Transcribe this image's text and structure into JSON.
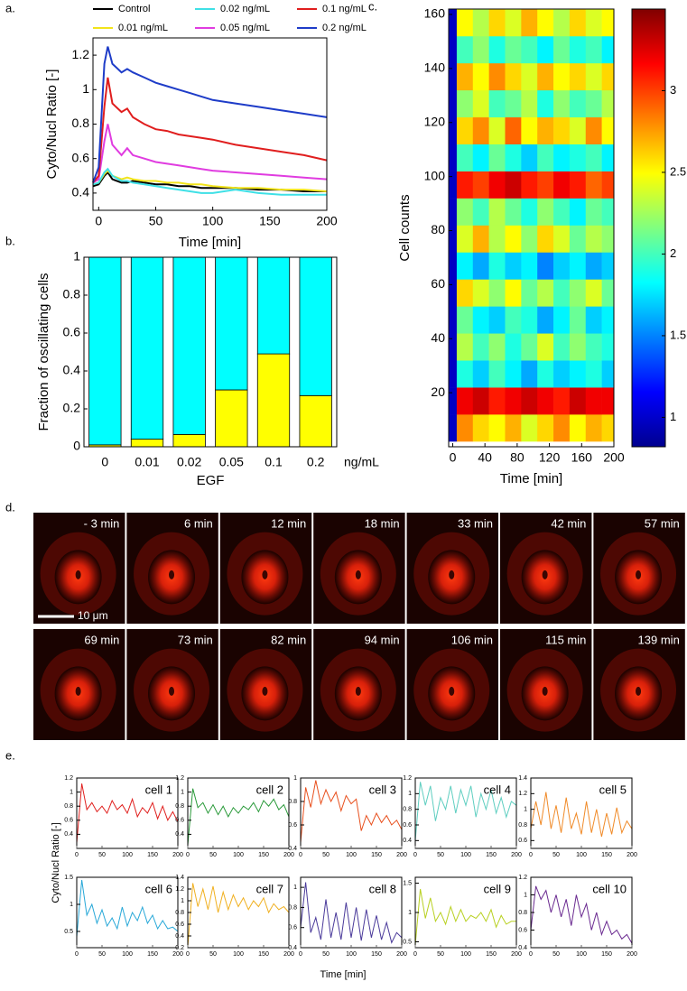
{
  "panel_labels": [
    "a.",
    "b.",
    "c.",
    "d.",
    "e."
  ],
  "chart_data": [
    {
      "type": "line",
      "xlabel": "Time [min]",
      "ylabel": "Cyto/Nucl Ratio [-]",
      "xlim": [
        -5,
        200
      ],
      "ylim": [
        0.3,
        1.3
      ],
      "xticks": [
        0,
        50,
        100,
        150,
        200
      ],
      "yticks": [
        0.4,
        0.6,
        0.8,
        1,
        1.2
      ],
      "x": [
        -5,
        0,
        5,
        8,
        12,
        20,
        25,
        30,
        40,
        50,
        60,
        70,
        80,
        90,
        100,
        120,
        140,
        160,
        180,
        200
      ],
      "series": [
        {
          "name": "Control",
          "color": "#000000",
          "values": [
            0.44,
            0.45,
            0.5,
            0.52,
            0.48,
            0.46,
            0.46,
            0.47,
            0.46,
            0.45,
            0.45,
            0.44,
            0.44,
            0.43,
            0.43,
            0.43,
            0.42,
            0.42,
            0.41,
            0.41
          ]
        },
        {
          "name": "0.01 ng/mL",
          "color": "#f2e41a",
          "values": [
            0.45,
            0.46,
            0.51,
            0.53,
            0.5,
            0.48,
            0.49,
            0.48,
            0.47,
            0.47,
            0.46,
            0.46,
            0.45,
            0.45,
            0.44,
            0.43,
            0.43,
            0.42,
            0.42,
            0.41
          ]
        },
        {
          "name": "0.02 ng/mL",
          "color": "#3fe0e6",
          "values": [
            0.45,
            0.46,
            0.52,
            0.54,
            0.5,
            0.47,
            0.47,
            0.46,
            0.45,
            0.44,
            0.43,
            0.42,
            0.41,
            0.4,
            0.4,
            0.42,
            0.4,
            0.39,
            0.39,
            0.39
          ]
        },
        {
          "name": "0.05 ng/mL",
          "color": "#e03ce0",
          "values": [
            0.46,
            0.48,
            0.7,
            0.8,
            0.68,
            0.62,
            0.66,
            0.62,
            0.6,
            0.58,
            0.57,
            0.56,
            0.55,
            0.54,
            0.53,
            0.52,
            0.51,
            0.5,
            0.49,
            0.48
          ]
        },
        {
          "name": "0.1 ng/mL",
          "color": "#e01e1e",
          "values": [
            0.46,
            0.5,
            0.9,
            1.07,
            0.92,
            0.87,
            0.89,
            0.84,
            0.8,
            0.77,
            0.76,
            0.74,
            0.73,
            0.72,
            0.71,
            0.68,
            0.66,
            0.64,
            0.62,
            0.59
          ]
        },
        {
          "name": "0.2 ng/mL",
          "color": "#1e3cc8",
          "values": [
            0.46,
            0.55,
            1.15,
            1.25,
            1.15,
            1.1,
            1.12,
            1.1,
            1.07,
            1.04,
            1.02,
            1.0,
            0.98,
            0.96,
            0.94,
            0.92,
            0.9,
            0.88,
            0.86,
            0.84
          ]
        }
      ]
    },
    {
      "type": "stacked_bar",
      "xlabel": "EGF",
      "xunit": "ng/mL",
      "ylabel": "Fraction of oscillating cells",
      "ylim": [
        0,
        1
      ],
      "yticks": [
        0,
        0.2,
        0.4,
        0.6,
        0.8,
        1
      ],
      "categories": [
        "0",
        "0.01",
        "0.02",
        "0.05",
        "0.1",
        "0.2"
      ],
      "series": [
        {
          "color": "#ffff00",
          "values": [
            0.01,
            0.04,
            0.065,
            0.3,
            0.49,
            0.27
          ]
        },
        {
          "color": "#00ffff",
          "values": [
            0.99,
            0.96,
            0.935,
            0.7,
            0.51,
            0.73
          ]
        }
      ]
    },
    {
      "type": "heatmap",
      "xlabel": "Time [min]",
      "ylabel": "Cell counts",
      "xlim": [
        -5,
        200
      ],
      "ylim": [
        0,
        162
      ],
      "xticks": [
        0,
        40,
        80,
        120,
        160,
        200
      ],
      "yticks": [
        20,
        40,
        60,
        80,
        100,
        120,
        140,
        160
      ],
      "clim": [
        0.82,
        3.5
      ],
      "cticks": [
        1,
        1.5,
        2,
        2.5,
        3
      ],
      "xbins": [
        -5,
        5,
        25,
        45,
        65,
        85,
        105,
        125,
        145,
        165,
        185,
        200
      ],
      "ybins": [
        2,
        12,
        22,
        32,
        42,
        52,
        62,
        72,
        82,
        92,
        102,
        112,
        122,
        132,
        142,
        152,
        162
      ],
      "z": [
        [
          1.0,
          2.8,
          2.6,
          2.5,
          2.7,
          2.4,
          2.6,
          2.8,
          2.5,
          2.7,
          2.6
        ],
        [
          1.0,
          3.2,
          3.3,
          3.1,
          3.2,
          3.3,
          3.2,
          3.1,
          3.3,
          3.2,
          3.2
        ],
        [
          1.0,
          1.9,
          1.7,
          2.0,
          1.8,
          1.6,
          1.9,
          1.7,
          1.8,
          1.9,
          1.7
        ],
        [
          1.0,
          2.3,
          2.0,
          2.2,
          1.9,
          2.1,
          2.4,
          2.0,
          2.2,
          2.0,
          1.9
        ],
        [
          1.0,
          2.1,
          1.8,
          1.7,
          2.0,
          1.9,
          1.6,
          1.8,
          2.1,
          1.7,
          1.8
        ],
        [
          1.0,
          2.6,
          2.4,
          2.2,
          2.5,
          2.1,
          2.3,
          2.0,
          2.2,
          2.4,
          2.1
        ],
        [
          1.0,
          1.8,
          1.6,
          1.9,
          1.7,
          1.8,
          1.5,
          1.7,
          1.8,
          1.6,
          1.7
        ],
        [
          1.0,
          2.4,
          2.7,
          2.3,
          2.5,
          2.2,
          2.6,
          2.4,
          2.1,
          2.3,
          2.2
        ],
        [
          1.0,
          2.2,
          2.0,
          2.3,
          2.1,
          1.9,
          2.2,
          2.0,
          1.8,
          2.1,
          2.0
        ],
        [
          1.0,
          3.1,
          3.0,
          3.2,
          3.3,
          3.1,
          3.0,
          3.2,
          3.1,
          2.9,
          3.0
        ],
        [
          1.0,
          2.0,
          1.8,
          2.1,
          1.9,
          1.7,
          2.0,
          1.8,
          1.9,
          2.0,
          1.8
        ],
        [
          1.0,
          2.6,
          2.8,
          2.4,
          2.9,
          2.5,
          2.7,
          2.6,
          2.4,
          2.8,
          2.5
        ],
        [
          1.0,
          2.2,
          2.4,
          2.0,
          2.1,
          2.3,
          1.9,
          2.2,
          2.0,
          2.1,
          2.3
        ],
        [
          1.0,
          2.7,
          2.5,
          2.8,
          2.6,
          2.4,
          2.7,
          2.5,
          2.6,
          2.4,
          2.6
        ],
        [
          1.0,
          2.0,
          2.2,
          1.9,
          2.1,
          2.0,
          1.8,
          2.1,
          1.9,
          2.0,
          1.8
        ],
        [
          1.0,
          2.5,
          2.3,
          2.6,
          2.4,
          2.7,
          2.5,
          2.3,
          2.6,
          2.4,
          2.5
        ]
      ]
    },
    {
      "type": "multiples",
      "xlabel": "Time [min]",
      "ylabel": "Cyto/Nucl Ratio [-]",
      "xlim": [
        0,
        200
      ],
      "xticks": [
        0,
        50,
        100,
        150,
        200
      ],
      "x": [
        0,
        10,
        20,
        30,
        40,
        50,
        60,
        70,
        80,
        90,
        100,
        110,
        120,
        130,
        140,
        150,
        160,
        170,
        180,
        190,
        200
      ],
      "panels": [
        {
          "name": "cell 1",
          "color": "#e0201e",
          "ylim": [
            0.2,
            1.2
          ],
          "yticks": [
            0.4,
            0.6,
            0.8,
            1,
            1.2
          ],
          "values": [
            0.28,
            1.12,
            0.75,
            0.85,
            0.72,
            0.8,
            0.7,
            0.88,
            0.75,
            0.82,
            0.7,
            0.9,
            0.65,
            0.78,
            0.7,
            0.85,
            0.62,
            0.8,
            0.6,
            0.72,
            0.58
          ]
        },
        {
          "name": "cell 2",
          "color": "#2a9a3a",
          "ylim": [
            0.2,
            1.2
          ],
          "yticks": [
            0.4,
            0.6,
            0.8,
            1,
            1.2
          ],
          "values": [
            0.25,
            1.05,
            0.78,
            0.85,
            0.7,
            0.82,
            0.68,
            0.8,
            0.65,
            0.78,
            0.7,
            0.8,
            0.75,
            0.85,
            0.72,
            0.88,
            0.8,
            0.9,
            0.75,
            0.82,
            0.65
          ]
        },
        {
          "name": "cell 3",
          "color": "#e8501e",
          "ylim": [
            0.4,
            1.0
          ],
          "yticks": [
            0.4,
            0.6,
            0.8,
            1
          ],
          "values": [
            0.45,
            0.92,
            0.75,
            0.98,
            0.78,
            0.9,
            0.8,
            0.88,
            0.72,
            0.85,
            0.78,
            0.82,
            0.55,
            0.68,
            0.6,
            0.7,
            0.62,
            0.68,
            0.6,
            0.64,
            0.56
          ]
        },
        {
          "name": "cell 4",
          "color": "#5ecec0",
          "ylim": [
            0.3,
            1.2
          ],
          "yticks": [
            0.4,
            0.6,
            0.8,
            1,
            1.2
          ],
          "values": [
            0.4,
            1.15,
            0.85,
            1.1,
            0.65,
            0.95,
            0.8,
            1.1,
            0.75,
            1.05,
            0.85,
            1.1,
            0.7,
            1.0,
            0.8,
            1.05,
            0.75,
            0.95,
            0.7,
            0.9,
            0.85
          ]
        },
        {
          "name": "cell 5",
          "color": "#f08a28",
          "ylim": [
            0.5,
            1.4
          ],
          "yticks": [
            0.6,
            0.8,
            1,
            1.2,
            1.4
          ],
          "values": [
            0.75,
            1.1,
            0.8,
            1.22,
            0.75,
            1.05,
            0.7,
            1.15,
            0.75,
            0.95,
            0.68,
            1.1,
            0.7,
            1.0,
            0.65,
            0.95,
            0.68,
            1.02,
            0.7,
            0.85,
            0.75
          ]
        },
        {
          "name": "cell 6",
          "color": "#28a8d8",
          "ylim": [
            0.2,
            1.5
          ],
          "yticks": [
            0.5,
            1,
            1.5
          ],
          "values": [
            0.4,
            1.45,
            0.8,
            1.0,
            0.65,
            0.9,
            0.6,
            0.75,
            0.55,
            0.95,
            0.6,
            0.85,
            0.7,
            0.95,
            0.65,
            0.8,
            0.55,
            0.7,
            0.55,
            0.58,
            0.5
          ]
        },
        {
          "name": "cell 7",
          "color": "#f0b020",
          "ylim": [
            0.2,
            1.4
          ],
          "yticks": [
            0.2,
            0.4,
            0.6,
            0.8,
            1,
            1.2,
            1.4
          ],
          "values": [
            0.22,
            1.3,
            0.9,
            1.2,
            0.85,
            1.25,
            0.8,
            1.15,
            0.85,
            1.1,
            0.9,
            1.05,
            0.85,
            1.0,
            0.9,
            1.05,
            0.8,
            0.95,
            0.85,
            0.9,
            0.8
          ]
        },
        {
          "name": "cell 8",
          "color": "#4a3a9a",
          "ylim": [
            0.4,
            1.1
          ],
          "yticks": [
            0.4,
            0.6,
            0.8,
            1
          ],
          "values": [
            0.6,
            1.05,
            0.55,
            0.7,
            0.48,
            0.88,
            0.5,
            0.75,
            0.48,
            0.85,
            0.5,
            0.8,
            0.47,
            0.78,
            0.5,
            0.72,
            0.48,
            0.65,
            0.45,
            0.55,
            0.5
          ]
        },
        {
          "name": "cell 9",
          "color": "#b8d020",
          "ylim": [
            0.4,
            1.6
          ],
          "yticks": [
            0.5,
            1,
            1.5
          ],
          "values": [
            0.45,
            1.4,
            0.9,
            1.25,
            0.85,
            1.0,
            0.8,
            1.1,
            0.85,
            1.05,
            0.85,
            0.95,
            0.9,
            1.0,
            0.85,
            1.05,
            0.75,
            0.95,
            0.8,
            0.85,
            0.85
          ]
        },
        {
          "name": "cell 10",
          "color": "#6a2a90",
          "ylim": [
            0.4,
            1.2
          ],
          "yticks": [
            0.4,
            0.6,
            0.8,
            1,
            1.2
          ],
          "values": [
            0.6,
            1.1,
            0.95,
            1.05,
            0.8,
            1.0,
            0.75,
            0.95,
            0.65,
            1.0,
            0.75,
            0.9,
            0.6,
            0.8,
            0.55,
            0.7,
            0.55,
            0.6,
            0.5,
            0.55,
            0.45
          ]
        }
      ]
    }
  ],
  "images": {
    "scale_bar": "10 μm",
    "frames": [
      "- 3 min",
      "6 min",
      "12 min",
      "18 min",
      "33 min",
      "42 min",
      "57 min",
      "69 min",
      "73 min",
      "82 min",
      "94 min",
      "106 min",
      "115 min",
      "139 min"
    ]
  }
}
